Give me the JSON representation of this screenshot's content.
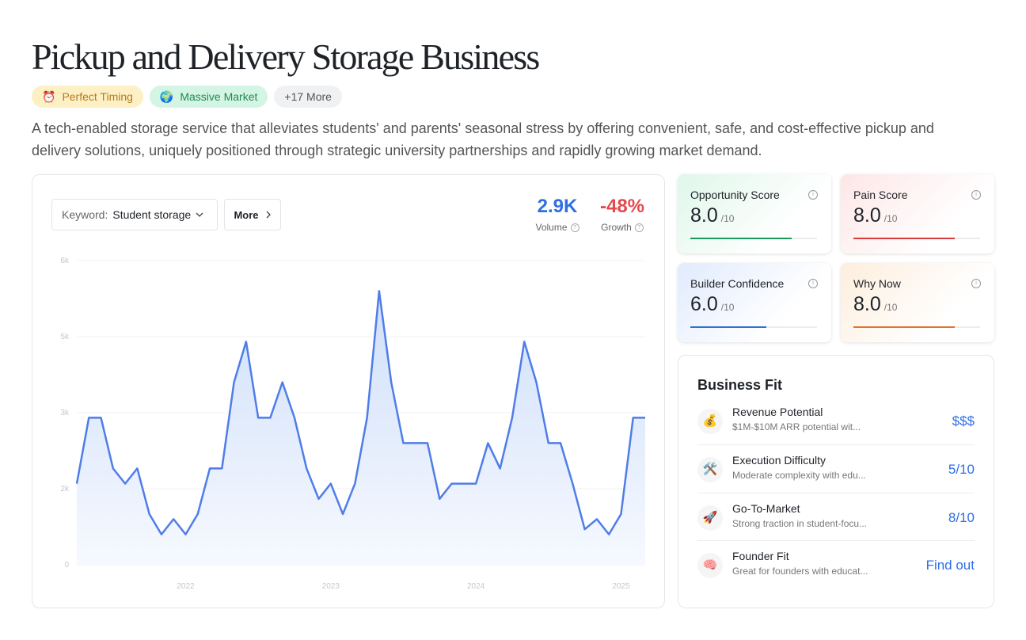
{
  "header": {
    "title": "Pickup and Delivery Storage Business",
    "tags": [
      {
        "icon": "⏰",
        "label": "Perfect Timing"
      },
      {
        "icon": "🌍",
        "label": "Massive Market"
      },
      {
        "label": "+17 More"
      }
    ],
    "description": "A tech-enabled storage service that alleviates students' and parents' seasonal stress by offering convenient, safe, and cost-effective pickup and delivery solutions, uniquely positioned through strategic university partnerships and rapidly growing market demand."
  },
  "trend": {
    "keyword_label": "Keyword:",
    "keyword": "Student storage",
    "more": "More",
    "metrics": [
      {
        "value": "2.9K",
        "label": "Volume"
      },
      {
        "value": "-48%",
        "label": "Growth"
      }
    ]
  },
  "chart_data": {
    "type": "line",
    "area": true,
    "color": "#4f7de8",
    "grid": true,
    "categories": [
      null,
      null,
      null,
      null,
      null,
      null,
      null,
      null,
      null,
      "2022",
      null,
      null,
      null,
      null,
      null,
      null,
      null,
      null,
      null,
      null,
      null,
      "2023",
      null,
      null,
      null,
      null,
      null,
      null,
      null,
      null,
      null,
      null,
      null,
      "2024",
      null,
      null,
      null,
      null,
      null,
      null,
      null,
      null,
      null,
      null,
      null,
      "2025",
      null,
      null
    ],
    "values": [
      1600,
      2900,
      2900,
      1900,
      1600,
      1900,
      1000,
      600,
      900,
      600,
      1000,
      1900,
      1900,
      3600,
      4400,
      2900,
      2900,
      3600,
      2900,
      1900,
      1300,
      1600,
      1000,
      1600,
      2900,
      5400,
      3600,
      2400,
      2400,
      2400,
      1300,
      1600,
      1600,
      1600,
      2400,
      1900,
      2900,
      4400,
      3600,
      2400,
      2400,
      1600,
      700,
      900,
      600,
      1000,
      2900,
      2900
    ],
    "ylim": [
      0,
      6000
    ],
    "yticks": [
      0,
      {
        "value": 1500,
        "label": "2k"
      },
      {
        "value": 3000,
        "label": "3k"
      },
      {
        "value": 4500,
        "label": "5k"
      },
      {
        "value": 6000,
        "label": "6k"
      }
    ]
  },
  "scores": [
    {
      "label": "Opportunity Score",
      "value": 8,
      "value_label": "8.0",
      "scale": "/10",
      "max": 10,
      "color": "#1a9a5c",
      "tint": "#dff7ea"
    },
    {
      "label": "Pain Score",
      "value": 8,
      "value_label": "8.0",
      "scale": "/10",
      "max": 10,
      "color": "#d93a3a",
      "tint": "#fde6e6"
    },
    {
      "label": "Builder Confidence",
      "value": 6,
      "value_label": "6.0",
      "scale": "/10",
      "max": 10,
      "color": "#2f6fd6",
      "tint": "#e1ebfd"
    },
    {
      "label": "Why Now",
      "value": 8,
      "value_label": "8.0",
      "scale": "/10",
      "max": 10,
      "color": "#e8702a",
      "tint": "#fdeedd"
    }
  ],
  "business_fit": {
    "title": "Business Fit",
    "rows": [
      {
        "icon": "💰",
        "title": "Revenue Potential",
        "desc": "$1M-$10M ARR potential wit...",
        "value": "$$$"
      },
      {
        "icon": "🛠️",
        "title": "Execution Difficulty",
        "desc": "Moderate complexity with edu...",
        "value": "5/10"
      },
      {
        "icon": "🚀",
        "title": "Go-To-Market",
        "desc": "Strong traction in student-focu...",
        "value": "8/10"
      },
      {
        "icon": "🧠",
        "title": "Founder Fit",
        "desc": "Great for founders with educat...",
        "value": "Find out"
      }
    ]
  }
}
